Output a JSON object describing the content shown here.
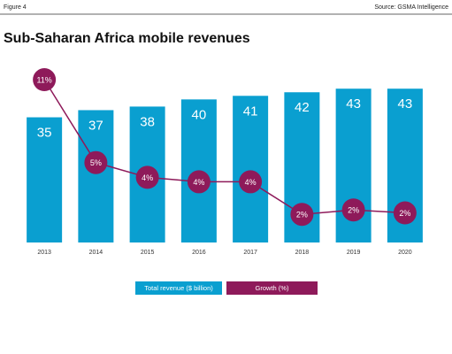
{
  "figure_label": "Figure 4",
  "source": "Source: GSMA Intelligence",
  "chart_data": {
    "type": "bar",
    "title": "Sub-Saharan Africa mobile revenues",
    "categories": [
      "2013",
      "2014",
      "2015",
      "2016",
      "2017",
      "2018",
      "2019",
      "2020"
    ],
    "series": [
      {
        "name": "Total revenue ($ billion)",
        "type": "bar",
        "color": "#0a9fd0",
        "values": [
          35,
          37,
          38,
          40,
          41,
          42,
          43,
          43
        ]
      },
      {
        "name": "Growth (%)",
        "type": "line",
        "axis": "y2",
        "color": "#8e1a5a",
        "values": [
          11,
          5.4,
          4.4,
          4.1,
          4.1,
          1.9,
          2.2,
          2.0
        ],
        "value_labels": [
          "11%",
          "5%",
          "4%",
          "4%",
          "4%",
          "2%",
          "2%",
          "2%"
        ]
      }
    ],
    "ylim": [
      0,
      48
    ],
    "y2lim": [
      0,
      11.6
    ],
    "legend": "bottom"
  }
}
